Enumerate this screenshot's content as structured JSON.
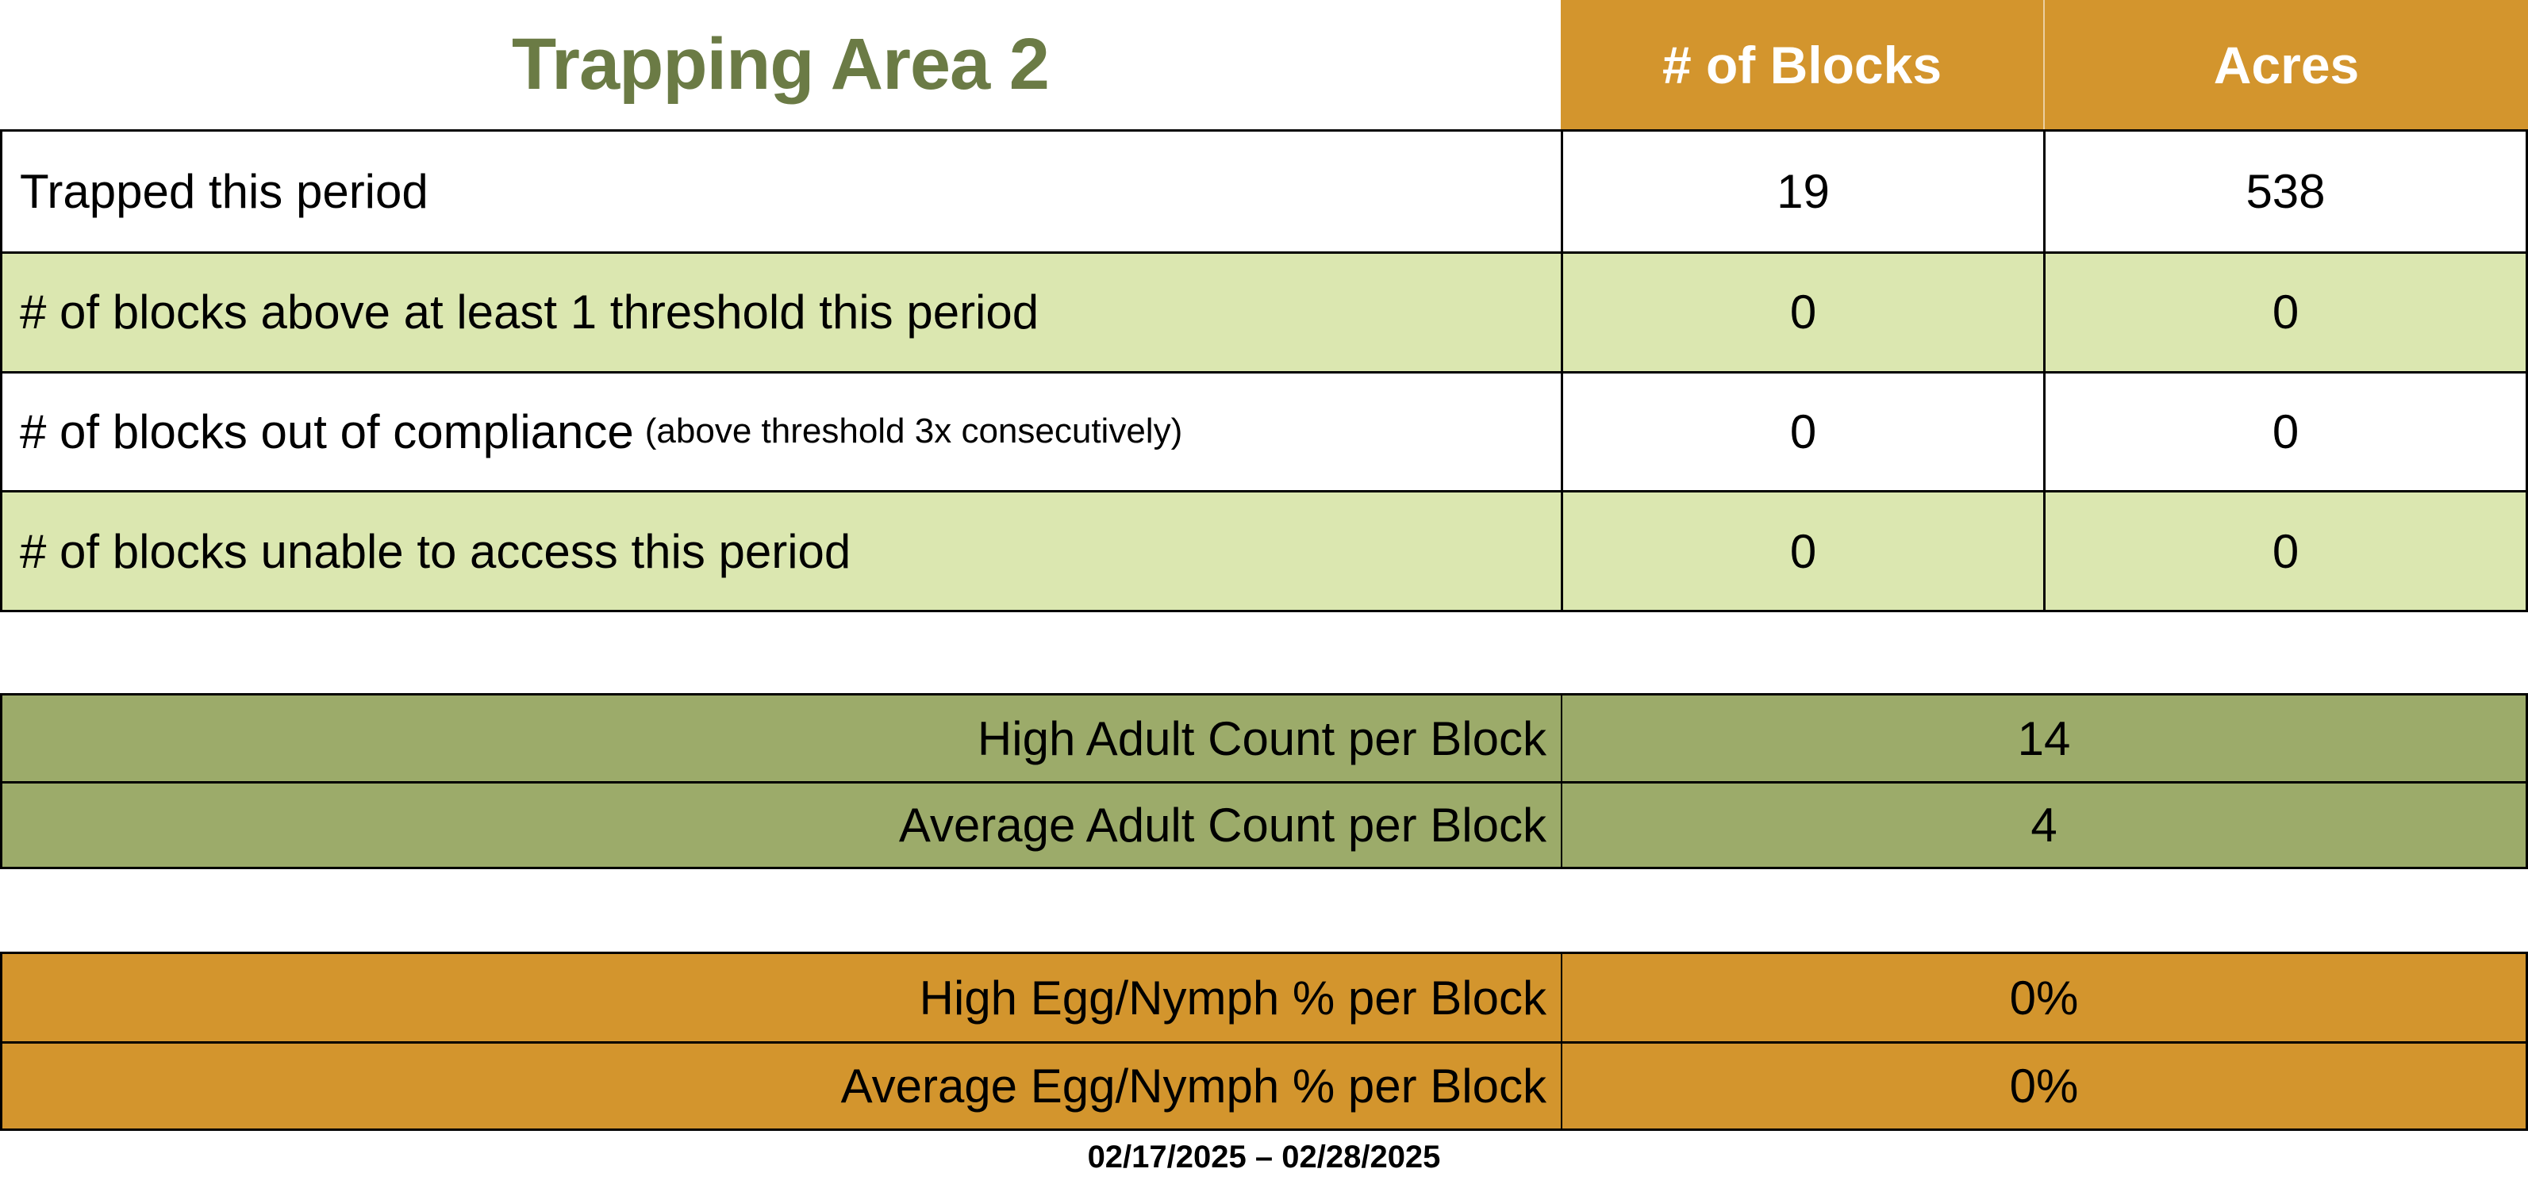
{
  "title": "Trapping Area 2",
  "columns": {
    "blocks": "# of Blocks",
    "acres": "Acres"
  },
  "summary_table": {
    "rows": [
      {
        "label": "Trapped this period",
        "note": "",
        "blocks": "19",
        "acres": "538"
      },
      {
        "label": "# of blocks above at least 1 threshold this period",
        "note": "",
        "blocks": "0",
        "acres": "0"
      },
      {
        "label": "# of blocks out of compliance",
        "note": "(above threshold 3x consecutively)",
        "blocks": "0",
        "acres": "0"
      },
      {
        "label": "# of blocks unable to access this period",
        "note": "",
        "blocks": "0",
        "acres": "0"
      }
    ]
  },
  "adult_table": {
    "rows": [
      {
        "label": "High Adult Count per Block",
        "value": "14"
      },
      {
        "label": "Average Adult Count per Block",
        "value": "4"
      }
    ]
  },
  "egg_table": {
    "rows": [
      {
        "label": "High Egg/Nymph % per Block",
        "value": "0%"
      },
      {
        "label": "Average Egg/Nymph % per Block",
        "value": "0%"
      }
    ]
  },
  "date_range": "02/17/2025 – 02/28/2025",
  "colors": {
    "header_orange": "#D3952D",
    "row_light_green": "#DBE7B0",
    "stat_olive": "#9CAB6A",
    "title_green": "#6B7B45",
    "border_black": "#000000",
    "header_text_white": "#FFFFFF"
  }
}
